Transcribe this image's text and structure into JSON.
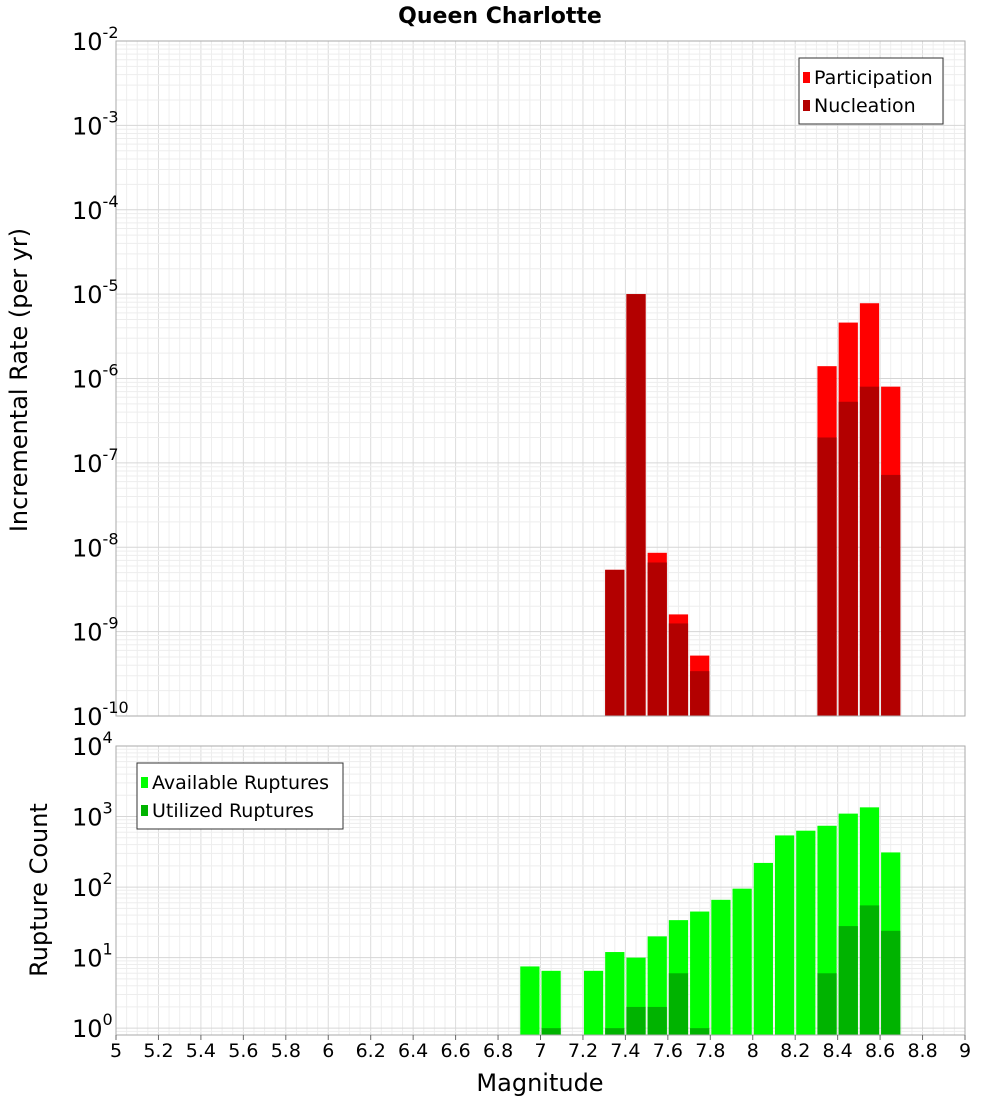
{
  "chart_data": [
    {
      "type": "bar",
      "title": "Queen Charlotte",
      "xlabel": "",
      "ylabel": "Incremental Rate (per yr)",
      "y_scale": "log",
      "ylim": [
        1e-10,
        0.01
      ],
      "y_tick_labels": [
        {
          "base": "10",
          "exp": "-10",
          "value": 1e-10
        },
        {
          "base": "10",
          "exp": "-9",
          "value": 1e-09
        },
        {
          "base": "10",
          "exp": "-8",
          "value": 1e-08
        },
        {
          "base": "10",
          "exp": "-7",
          "value": 1e-07
        },
        {
          "base": "10",
          "exp": "-6",
          "value": 1e-06
        },
        {
          "base": "10",
          "exp": "-5",
          "value": 1e-05
        },
        {
          "base": "10",
          "exp": "-4",
          "value": 0.0001
        },
        {
          "base": "10",
          "exp": "-3",
          "value": 0.001
        },
        {
          "base": "10",
          "exp": "-2",
          "value": 0.01
        }
      ],
      "xlim": [
        5,
        9
      ],
      "grid": true,
      "legend_position": "top-right",
      "series": [
        {
          "name": "Participation",
          "color": "#ff0000",
          "x": [
            7.35,
            7.45,
            7.55,
            7.65,
            7.75,
            8.35,
            8.45,
            8.55,
            8.65
          ],
          "values": [
            5.4e-09,
            1e-05,
            8.6e-09,
            1.6e-09,
            5.2e-10,
            1.4e-06,
            4.6e-06,
            7.8e-06,
            8e-07
          ]
        },
        {
          "name": "Nucleation",
          "color": "#b30000",
          "x": [
            7.35,
            7.45,
            7.55,
            7.65,
            7.75,
            8.35,
            8.45,
            8.55,
            8.65
          ],
          "values": [
            5.4e-09,
            1e-05,
            6.6e-09,
            1.25e-09,
            3.4e-10,
            2e-07,
            5.3e-07,
            8e-07,
            7.2e-08
          ]
        }
      ]
    },
    {
      "type": "bar",
      "title": "",
      "xlabel": "Magnitude",
      "ylabel": "Rupture Count",
      "y_scale": "log",
      "ylim": [
        0.8,
        10000.0
      ],
      "y_tick_labels": [
        {
          "base": "10",
          "exp": "0",
          "value": 1
        },
        {
          "base": "10",
          "exp": "1",
          "value": 10
        },
        {
          "base": "10",
          "exp": "2",
          "value": 100
        },
        {
          "base": "10",
          "exp": "3",
          "value": 1000
        },
        {
          "base": "10",
          "exp": "4",
          "value": 10000
        }
      ],
      "xlim": [
        5,
        9
      ],
      "x_tick_labels": [
        "5",
        "5.2",
        "5.4",
        "5.6",
        "5.8",
        "6",
        "6.2",
        "6.4",
        "6.6",
        "6.8",
        "7",
        "7.2",
        "7.4",
        "7.6",
        "7.8",
        "8",
        "8.2",
        "8.4",
        "8.6",
        "8.8",
        "9"
      ],
      "grid": true,
      "legend_position": "top-left",
      "series": [
        {
          "name": "Available Ruptures",
          "color": "#00ff00",
          "x": [
            6.95,
            7.05,
            7.25,
            7.35,
            7.45,
            7.55,
            7.65,
            7.75,
            7.85,
            7.95,
            8.05,
            8.15,
            8.25,
            8.35,
            8.45,
            8.55,
            8.65
          ],
          "values": [
            7.5,
            6.5,
            6.5,
            12,
            10,
            20,
            34,
            45,
            66,
            95,
            220,
            540,
            630,
            740,
            1100,
            1350,
            310
          ]
        },
        {
          "name": "Utilized Ruptures",
          "color": "#00b300",
          "x": [
            7.05,
            7.35,
            7.45,
            7.55,
            7.65,
            7.75,
            8.35,
            8.45,
            8.55,
            8.65
          ],
          "values": [
            1,
            1,
            2,
            2,
            6,
            1,
            6,
            28,
            55,
            24
          ]
        }
      ]
    }
  ]
}
